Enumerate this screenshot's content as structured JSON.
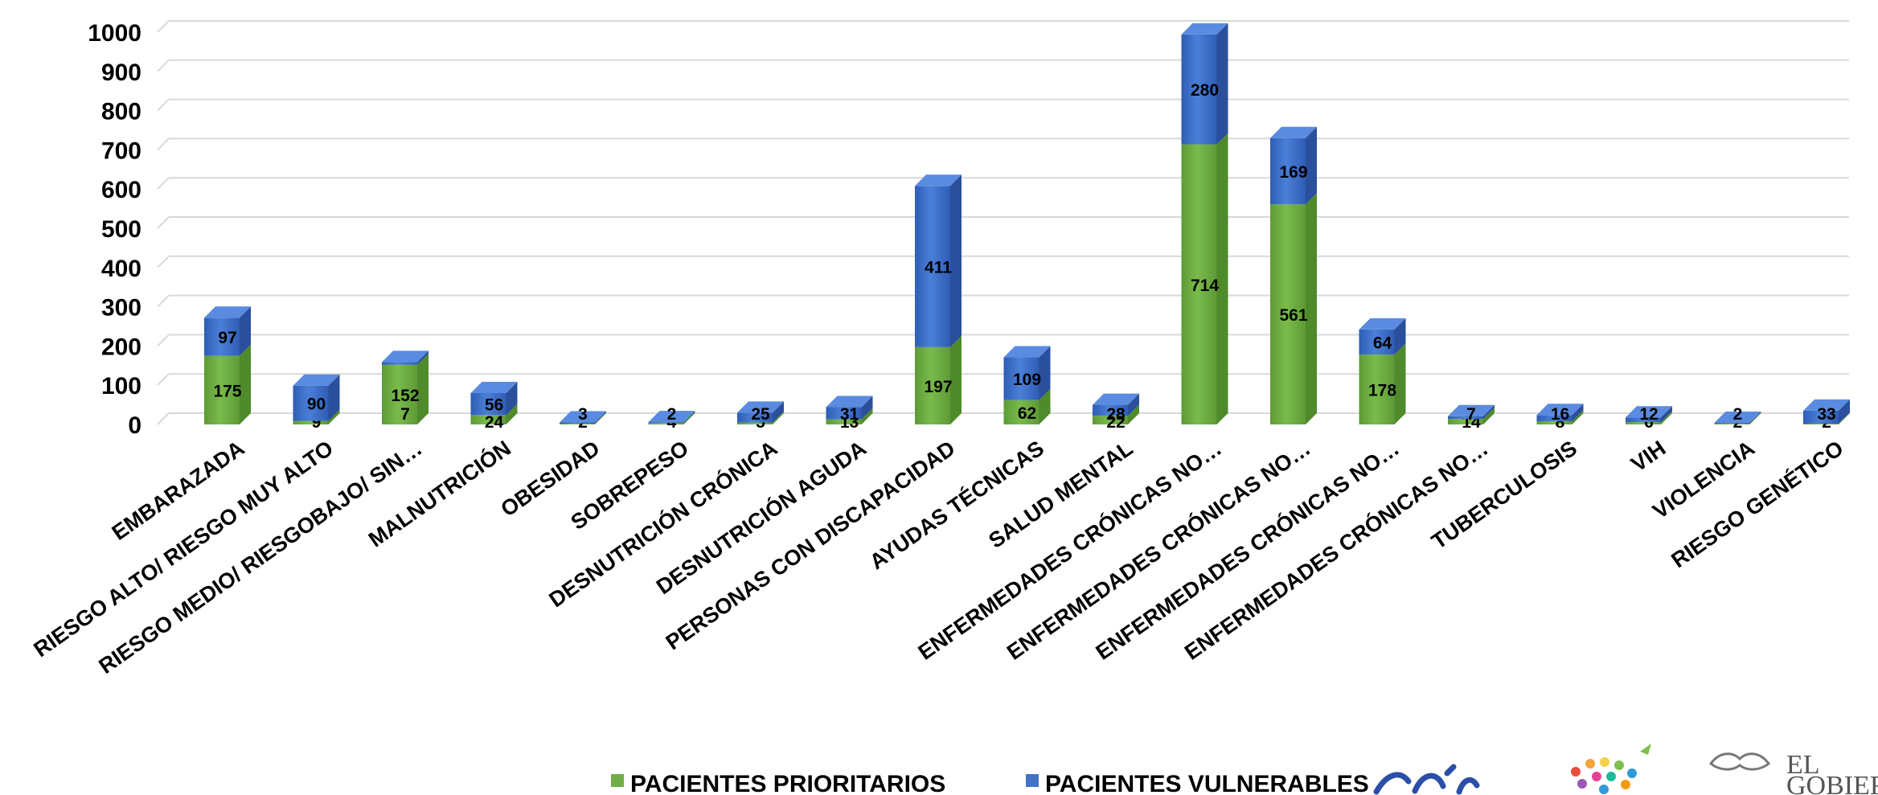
{
  "chart_data": {
    "type": "bar",
    "stacked": true,
    "three_d": true,
    "categories": [
      "EMBARAZADA",
      "RIESGO ALTO/ RIESGO MUY ALTO",
      "RIESGO MEDIO/ RIESGOBAJO/ SIN…",
      "MALNUTRICIÓN",
      "OBESIDAD",
      "SOBREPESO",
      "DESNUTRICIÓN CRÓNICA",
      "DESNUTRICIÓN AGUDA",
      "PERSONAS CON DISCAPACIDAD",
      "AYUDAS TÉCNICAS",
      "SALUD MENTAL",
      "ENFERMEDADES CRÓNICAS NO…",
      "ENFERMEDADES CRÓNICAS NO…",
      "ENFERMEDADES CRÓNICAS NO…",
      "ENFERMEDADES CRÓNICAS NO…",
      "TUBERCULOSIS",
      "VIH",
      "VIOLENCIA",
      "RIESGO GENÉTICO"
    ],
    "series": [
      {
        "name": "PACIENTES PRIORITARIOS",
        "color": "#70AD47",
        "values": [
          175,
          9,
          152,
          24,
          2,
          4,
          5,
          13,
          197,
          62,
          22,
          714,
          561,
          178,
          14,
          8,
          6,
          2,
          2
        ]
      },
      {
        "name": "PACIENTES VULNERABLES",
        "color": "#4472C4",
        "values": [
          97,
          90,
          7,
          56,
          3,
          2,
          25,
          31,
          411,
          109,
          28,
          280,
          169,
          64,
          7,
          16,
          12,
          2,
          33
        ]
      }
    ],
    "yticks": [
      0,
      100,
      200,
      300,
      400,
      500,
      600,
      700,
      800,
      900,
      1000
    ],
    "ylim": [
      0,
      1000
    ],
    "grid": true,
    "legend": "bottom"
  },
  "logos": {
    "right_text_1": "EL",
    "right_text_2": "GOBIER"
  }
}
